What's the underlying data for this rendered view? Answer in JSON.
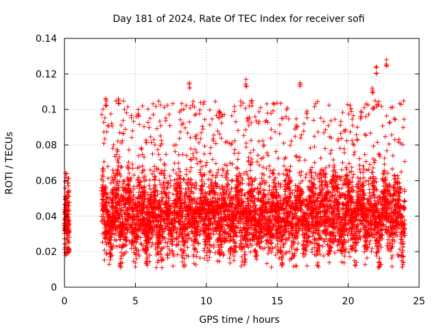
{
  "chart_data": {
    "type": "scatter",
    "title": "Day 181 of 2024, Rate Of TEC Index for receiver sofi",
    "xlabel": "GPS time / hours",
    "ylabel": "ROTI / TECUs",
    "xlim": [
      0,
      25
    ],
    "ylim": [
      0,
      0.14
    ],
    "xticks": [
      0,
      5,
      10,
      15,
      20,
      25
    ],
    "yticks": [
      0,
      0.02,
      0.04,
      0.06,
      0.08,
      0.1,
      0.12,
      0.14
    ],
    "xtick_labels": [
      "0",
      "5",
      "10",
      "15",
      "20",
      "25"
    ],
    "ytick_labels": [
      "0",
      "0.02",
      "0.04",
      "0.06",
      "0.08",
      "0.1",
      "0.12",
      "0.14"
    ],
    "grid": true,
    "marker": "+",
    "color": "#ff0000",
    "data_segments": [
      {
        "x_range": [
          0.0,
          0.35
        ],
        "y_core": [
          0.015,
          0.045
        ],
        "y_max": 0.065
      },
      {
        "x_range": [
          2.6,
          24.0
        ],
        "y_core": [
          0.02,
          0.06
        ],
        "y_max": 0.105
      }
    ],
    "outliers": [
      {
        "x": 8.8,
        "y": 0.115
      },
      {
        "x": 12.8,
        "y": 0.117
      },
      {
        "x": 16.6,
        "y": 0.115
      },
      {
        "x": 21.7,
        "y": 0.112
      },
      {
        "x": 22.0,
        "y": 0.124
      },
      {
        "x": 22.7,
        "y": 0.128
      },
      {
        "x": 2.9,
        "y": 0.106
      },
      {
        "x": 3.8,
        "y": 0.106
      },
      {
        "x": 5.2,
        "y": 0.1
      },
      {
        "x": 10.9,
        "y": 0.099
      },
      {
        "x": 17.1,
        "y": 0.099
      },
      {
        "x": 20.9,
        "y": 0.099
      },
      {
        "x": 13.2,
        "y": 0.105
      }
    ]
  }
}
